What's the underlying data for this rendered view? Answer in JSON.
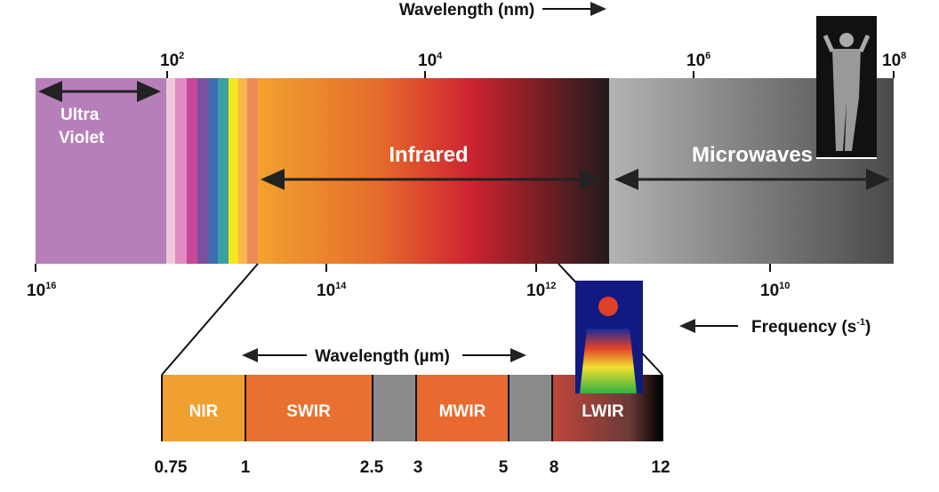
{
  "header": {
    "wavelength_label": "Wavelength (nm)"
  },
  "wavelength_ticks": [
    {
      "base": "10",
      "exponent": "2"
    },
    {
      "base": "10",
      "exponent": "4"
    },
    {
      "base": "10",
      "exponent": "6"
    },
    {
      "base": "10",
      "exponent": "8"
    }
  ],
  "regions": {
    "ultraviolet": [
      "Ultra",
      "Violet"
    ],
    "infrared": "Infrared",
    "microwaves": "Microwaves"
  },
  "frequency_ticks": [
    {
      "base": "10",
      "exponent": "16"
    },
    {
      "base": "10",
      "exponent": "14"
    },
    {
      "base": "10",
      "exponent": "12"
    },
    {
      "base": "10",
      "exponent": "10"
    }
  ],
  "frequency_label": {
    "text": "Frequency (s",
    "exponent": "-1",
    "close": ")"
  },
  "infrared_detail": {
    "wavelength_label": "Wavelength (µm)",
    "bands": [
      "NIR",
      "SWIR",
      "MWIR",
      "LWIR"
    ],
    "ticks": [
      "0.75",
      "1",
      "2.5",
      "3",
      "5",
      "8",
      "12"
    ]
  }
}
